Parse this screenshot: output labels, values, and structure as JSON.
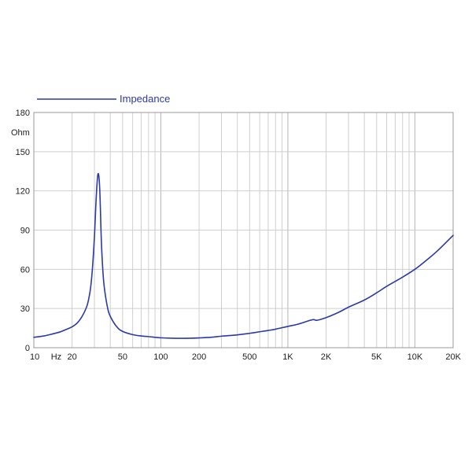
{
  "chart_data": {
    "type": "line",
    "xscale": "log",
    "xlim": [
      10,
      20000
    ],
    "ylim": [
      0,
      180
    ],
    "grid": true,
    "legend_position": "top-left",
    "ylabel": "Ohm",
    "xlabel": "",
    "title": "",
    "x_tick_labels": [
      {
        "value": 10,
        "label": "10"
      },
      {
        "value": 15,
        "label": "Hz"
      },
      {
        "value": 20,
        "label": "20"
      },
      {
        "value": 50,
        "label": "50"
      },
      {
        "value": 100,
        "label": "100"
      },
      {
        "value": 200,
        "label": "200"
      },
      {
        "value": 500,
        "label": "500"
      },
      {
        "value": 1000,
        "label": "1K"
      },
      {
        "value": 2000,
        "label": "2K"
      },
      {
        "value": 5000,
        "label": "5K"
      },
      {
        "value": 10000,
        "label": "10K"
      },
      {
        "value": 20000,
        "label": "20K"
      }
    ],
    "y_ticks": [
      0,
      30,
      60,
      90,
      120,
      150,
      180
    ],
    "series": [
      {
        "name": "Impedance",
        "color": "#2b3aa6",
        "x": [
          10,
          12,
          14,
          16,
          18,
          20,
          22,
          24,
          26,
          27,
          28,
          29,
          30,
          31,
          32,
          33,
          34,
          35,
          36,
          38,
          40,
          45,
          50,
          60,
          70,
          80,
          100,
          120,
          150,
          200,
          250,
          300,
          400,
          500,
          600,
          700,
          800,
          1000,
          1200,
          1500,
          1600,
          1700,
          2000,
          2500,
          3000,
          4000,
          5000,
          6000,
          8000,
          10000,
          12000,
          15000,
          20000
        ],
        "y": [
          8,
          9,
          10.5,
          12,
          14,
          16,
          19,
          24,
          31,
          37,
          46,
          62,
          85,
          115,
          133,
          122,
          82,
          58,
          45,
          31,
          24,
          16,
          12.5,
          10,
          9,
          8.5,
          7.6,
          7.3,
          7.2,
          7.5,
          8,
          8.8,
          9.8,
          11,
          12.2,
          13.2,
          14.2,
          16.3,
          18,
          21,
          21.5,
          21,
          23,
          27,
          31,
          36.5,
          42,
          47,
          54,
          60,
          66,
          74,
          86
        ]
      }
    ]
  }
}
